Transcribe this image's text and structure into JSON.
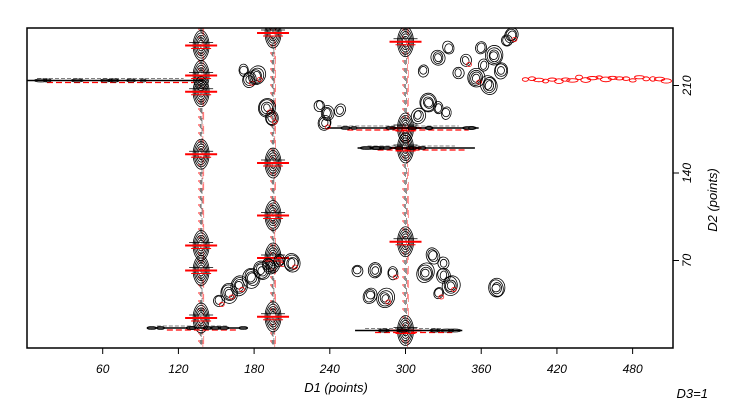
{
  "chart_data": {
    "type": "contour",
    "xlabel": "D1 (points)",
    "ylabel": "D2 (points)",
    "footer": "D3=1",
    "xlim": [
      0,
      512
    ],
    "ylim": [
      0,
      256
    ],
    "x_ticks": [
      60,
      120,
      180,
      240,
      300,
      360,
      420,
      480
    ],
    "y_ticks": [
      70,
      140,
      210
    ],
    "colors": {
      "positive": "#000000",
      "negative": "#ff0000",
      "frame": "#000000"
    },
    "columns": [
      {
        "x": 138,
        "y_range": [
          0,
          256
        ],
        "peaks_y": [
          242,
          218,
          205,
          155,
          82,
          62,
          24
        ]
      },
      {
        "x": 195,
        "y_range": [
          0,
          256
        ],
        "peaks_y": [
          252,
          148,
          106,
          72,
          25
        ]
      },
      {
        "x": 300,
        "y_range": [
          0,
          256
        ],
        "peaks_y": [
          245,
          176,
          160,
          85,
          14
        ]
      }
    ],
    "rows": [
      {
        "y": 214,
        "x_range": [
          0,
          140
        ]
      },
      {
        "y": 176,
        "x_range": [
          238,
          358
        ]
      },
      {
        "y": 160,
        "x_range": [
          262,
          355
        ]
      },
      {
        "y": 16,
        "x_range": [
          95,
          175
        ]
      },
      {
        "y": 14,
        "x_range": [
          260,
          345
        ]
      }
    ],
    "red_streak": {
      "y": 215,
      "x_range": [
        395,
        512
      ]
    },
    "peaks": [
      {
        "x": 172,
        "y": 222
      },
      {
        "x": 176,
        "y": 215
      },
      {
        "x": 182,
        "y": 218
      },
      {
        "x": 232,
        "y": 194
      },
      {
        "x": 238,
        "y": 188
      },
      {
        "x": 236,
        "y": 180
      },
      {
        "x": 248,
        "y": 190
      },
      {
        "x": 190,
        "y": 192
      },
      {
        "x": 194,
        "y": 184
      },
      {
        "x": 318,
        "y": 196
      },
      {
        "x": 326,
        "y": 192
      },
      {
        "x": 310,
        "y": 186
      },
      {
        "x": 332,
        "y": 188
      },
      {
        "x": 342,
        "y": 220
      },
      {
        "x": 348,
        "y": 230
      },
      {
        "x": 356,
        "y": 216
      },
      {
        "x": 362,
        "y": 226
      },
      {
        "x": 370,
        "y": 234
      },
      {
        "x": 376,
        "y": 222
      },
      {
        "x": 366,
        "y": 210
      },
      {
        "x": 380,
        "y": 246
      },
      {
        "x": 384,
        "y": 250
      },
      {
        "x": 360,
        "y": 240
      },
      {
        "x": 334,
        "y": 240
      },
      {
        "x": 326,
        "y": 232
      },
      {
        "x": 314,
        "y": 222
      },
      {
        "x": 168,
        "y": 50
      },
      {
        "x": 178,
        "y": 56
      },
      {
        "x": 186,
        "y": 62
      },
      {
        "x": 192,
        "y": 66
      },
      {
        "x": 200,
        "y": 70
      },
      {
        "x": 210,
        "y": 68
      },
      {
        "x": 160,
        "y": 44
      },
      {
        "x": 152,
        "y": 38
      },
      {
        "x": 262,
        "y": 62
      },
      {
        "x": 276,
        "y": 62
      },
      {
        "x": 290,
        "y": 60
      },
      {
        "x": 316,
        "y": 60
      },
      {
        "x": 330,
        "y": 58
      },
      {
        "x": 326,
        "y": 44
      },
      {
        "x": 336,
        "y": 50
      },
      {
        "x": 372,
        "y": 48
      },
      {
        "x": 272,
        "y": 42
      },
      {
        "x": 284,
        "y": 40
      },
      {
        "x": 330,
        "y": 68
      },
      {
        "x": 322,
        "y": 74
      }
    ]
  }
}
